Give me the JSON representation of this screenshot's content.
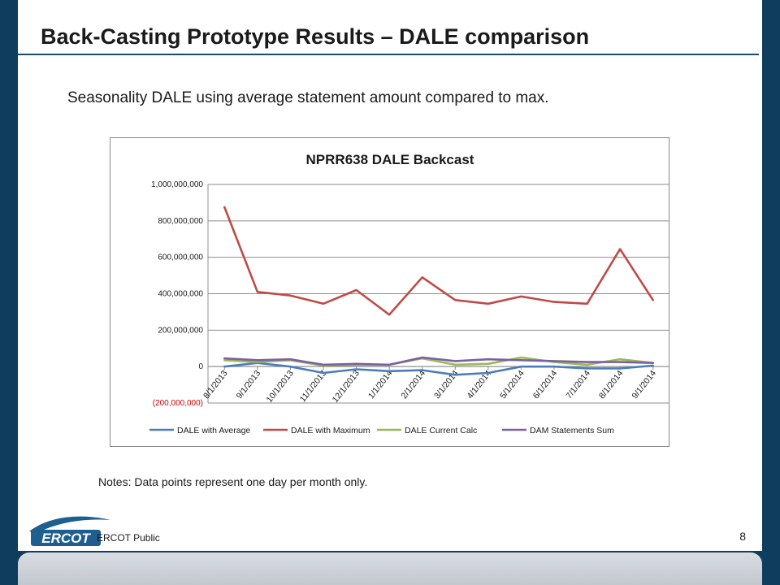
{
  "slide": {
    "title": "Back-Casting Prototype Results – DALE comparison",
    "subtitle": "Seasonality DALE using average statement amount compared to max.",
    "notes": "Notes: Data points represent one day per month only.",
    "footer_label": "ERCOT Public",
    "page_number": "8",
    "logo_text": "ERCOT"
  },
  "chart_data": {
    "type": "line",
    "title": "NPRR638 DALE Backcast",
    "xlabel": "",
    "ylabel": "",
    "categories": [
      "8/1/2013",
      "9/1/2013",
      "10/1/2013",
      "11/1/2013",
      "12/1/2013",
      "1/1/2014",
      "2/1/2014",
      "3/1/2014",
      "4/1/2014",
      "5/1/2014",
      "6/1/2014",
      "7/1/2014",
      "8/1/2014",
      "9/1/2014"
    ],
    "ylim": [
      -200000000,
      1000000000
    ],
    "yticks": [
      -200000000,
      0,
      200000000,
      400000000,
      600000000,
      800000000,
      1000000000
    ],
    "ytick_labels": [
      "(200,000,000)",
      "0",
      "200,000,000",
      "400,000,000",
      "600,000,000",
      "800,000,000",
      "1,000,000,000"
    ],
    "grid": true,
    "legend_position": "bottom",
    "series": [
      {
        "name": "DALE with Average",
        "color": "#4a7ebb",
        "values": [
          0,
          20000000,
          0,
          -35000000,
          -15000000,
          -25000000,
          -20000000,
          -45000000,
          -35000000,
          0,
          0,
          -10000000,
          -10000000,
          5000000
        ]
      },
      {
        "name": "DALE with Maximum",
        "color": "#be4b48",
        "values": [
          875000000,
          410000000,
          390000000,
          345000000,
          420000000,
          285000000,
          490000000,
          365000000,
          345000000,
          385000000,
          355000000,
          345000000,
          645000000,
          365000000
        ]
      },
      {
        "name": "DALE Current Calc",
        "color": "#98b954",
        "values": [
          35000000,
          25000000,
          35000000,
          5000000,
          10000000,
          10000000,
          45000000,
          10000000,
          15000000,
          50000000,
          25000000,
          10000000,
          40000000,
          20000000
        ]
      },
      {
        "name": "DAM Statements Sum",
        "color": "#7d60a0",
        "values": [
          45000000,
          35000000,
          40000000,
          10000000,
          15000000,
          10000000,
          50000000,
          30000000,
          40000000,
          35000000,
          30000000,
          25000000,
          25000000,
          20000000
        ]
      }
    ]
  }
}
